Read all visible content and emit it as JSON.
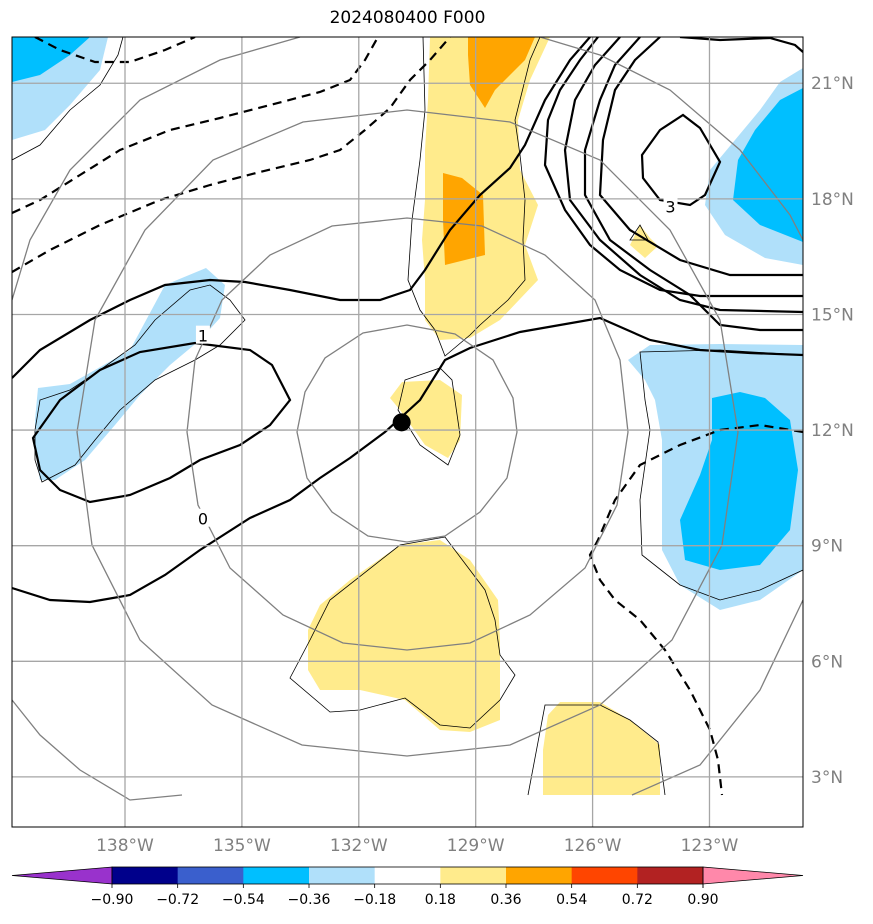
{
  "title": "2024080400 F000",
  "map": {
    "lon_range": [
      -140.9,
      -120.6
    ],
    "lat_range": [
      1.7,
      22.2
    ],
    "lon_ticks": [
      -138,
      -135,
      -132,
      -129,
      -126,
      -123
    ],
    "lat_ticks": [
      3,
      6,
      9,
      12,
      15,
      18,
      21
    ],
    "lon_tick_labels": [
      "138°W",
      "135°W",
      "132°W",
      "129°W",
      "126°W",
      "123°W"
    ],
    "lat_tick_labels": [
      "3°N",
      "6°N",
      "9°N",
      "12°N",
      "15°N",
      "18°N",
      "21°N"
    ],
    "gridlines": true,
    "center_marker": {
      "lon": -130.9,
      "lat": 12.2
    },
    "range_rings_deg": [
      2.7,
      5.4,
      8.1,
      10.8
    ],
    "contour_labels": [
      {
        "text": "1",
        "lon": -136.0,
        "lat": 14.45
      },
      {
        "text": "0",
        "lon": -136.0,
        "lat": 9.7
      },
      {
        "text": "3",
        "lon": -124.0,
        "lat": 17.8
      }
    ]
  },
  "colorbar": {
    "boundaries": [
      -0.9,
      -0.72,
      -0.54,
      -0.36,
      -0.18,
      0.18,
      0.36,
      0.54,
      0.72,
      0.9
    ],
    "labels": [
      "−0.90",
      "−0.72",
      "−0.54",
      "−0.36",
      "−0.18",
      "0.18",
      "0.36",
      "0.54",
      "0.72",
      "0.90"
    ],
    "colors": [
      "#9932cc",
      "#00008b",
      "#3a5fcd",
      "#00bfff",
      "#b0e0fa",
      "#ffffff",
      "#ffeb8c",
      "#ffa500",
      "#ff4500",
      "#b22222",
      "#ff88aa"
    ],
    "extend": "both"
  }
}
